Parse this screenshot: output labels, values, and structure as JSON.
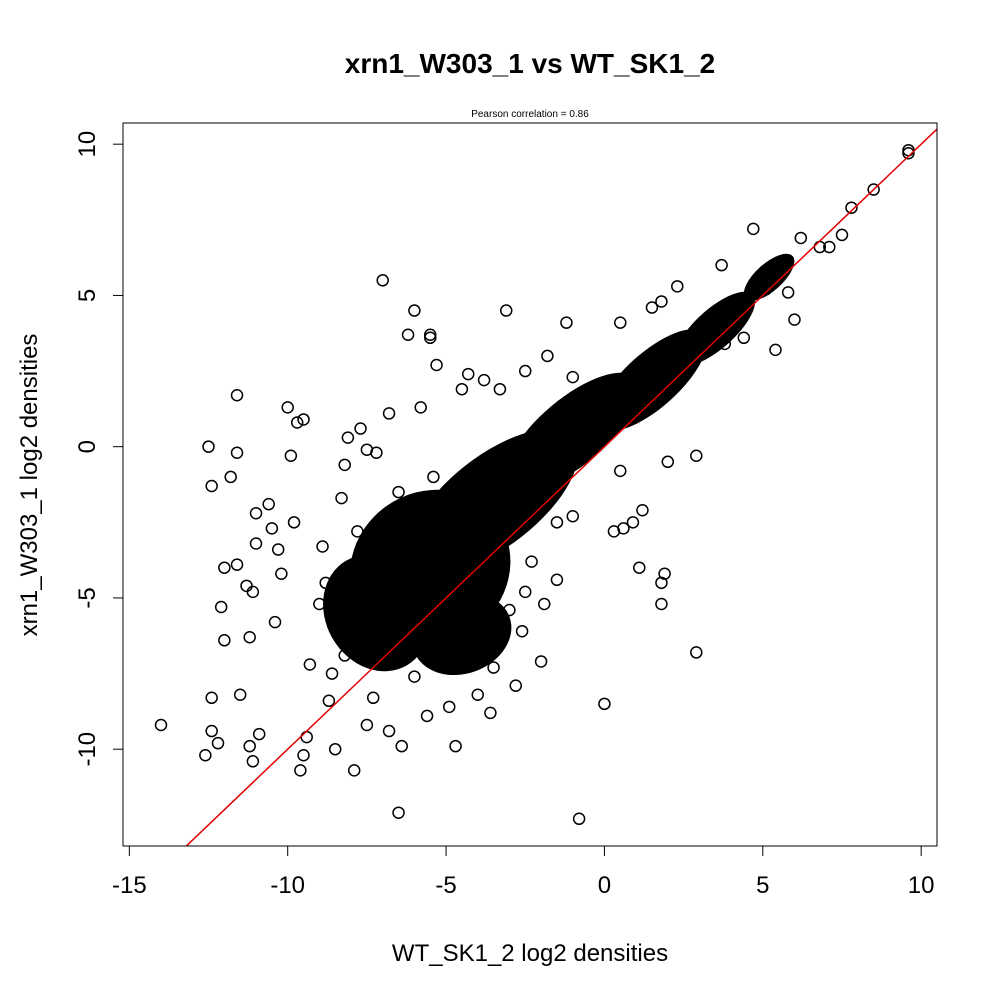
{
  "chart_data": {
    "type": "scatter",
    "title": "xrn1_W303_1 vs WT_SK1_2",
    "subtitle": "Pearson correlation =  0.86",
    "xlabel": "WT_SK1_2 log2 densities",
    "ylabel": "xrn1_W303_1 log2 densities",
    "xlim": [
      -15.2,
      10.5
    ],
    "ylim": [
      -13.2,
      10.7
    ],
    "x_ticks": [
      -15,
      -10,
      -5,
      0,
      5,
      10
    ],
    "x_tick_labels": [
      "-15",
      "-10",
      "-5",
      "0",
      "5",
      "10"
    ],
    "y_ticks": [
      -10,
      -5,
      0,
      5,
      10
    ],
    "y_tick_labels": [
      "-10",
      "-5",
      "0",
      "5",
      "10"
    ],
    "grid": false,
    "legend": "none",
    "reference_line": {
      "intercept": 0,
      "slope": 1,
      "color": "#e00000"
    },
    "point_color": "#000000",
    "points": [
      [
        -14.0,
        -9.2
      ],
      [
        -12.6,
        -10.2
      ],
      [
        -12.4,
        -8.3
      ],
      [
        -12.4,
        -9.4
      ],
      [
        -12.5,
        0.0
      ],
      [
        -12.4,
        -1.3
      ],
      [
        -12.2,
        -9.8
      ],
      [
        -12.1,
        -5.3
      ],
      [
        -12.0,
        -4.0
      ],
      [
        -12.0,
        -6.4
      ],
      [
        -11.8,
        -1.0
      ],
      [
        -11.6,
        1.7
      ],
      [
        -11.6,
        -0.2
      ],
      [
        -11.6,
        -3.9
      ],
      [
        -11.5,
        -8.2
      ],
      [
        -11.3,
        -4.6
      ],
      [
        -11.2,
        -6.3
      ],
      [
        -11.2,
        -9.9
      ],
      [
        -11.1,
        -10.4
      ],
      [
        -11.1,
        -4.8
      ],
      [
        -11.0,
        -2.2
      ],
      [
        -11.0,
        -3.2
      ],
      [
        -10.9,
        -9.5
      ],
      [
        -10.6,
        -1.9
      ],
      [
        -10.5,
        -2.7
      ],
      [
        -10.4,
        -5.8
      ],
      [
        -10.2,
        -4.2
      ],
      [
        -10.0,
        1.3
      ],
      [
        -9.8,
        -2.5
      ],
      [
        -9.7,
        0.8
      ],
      [
        -9.5,
        0.9
      ],
      [
        -9.6,
        -10.7
      ],
      [
        -9.5,
        -10.2
      ],
      [
        -9.4,
        -9.6
      ],
      [
        -8.9,
        -3.3
      ],
      [
        -8.7,
        -8.4
      ],
      [
        -8.6,
        -7.5
      ],
      [
        -8.5,
        -10.0
      ],
      [
        -8.3,
        -1.7
      ],
      [
        -8.2,
        -0.6
      ],
      [
        -8.1,
        0.3
      ],
      [
        -7.9,
        -10.7
      ],
      [
        -7.7,
        0.6
      ],
      [
        -7.5,
        -9.2
      ],
      [
        -7.2,
        -0.2
      ],
      [
        -7.0,
        5.5
      ],
      [
        -6.8,
        -9.4
      ],
      [
        -6.5,
        -12.1
      ],
      [
        -6.4,
        -9.9
      ],
      [
        -6.2,
        3.7
      ],
      [
        -6.0,
        4.5
      ],
      [
        -5.8,
        -6.2
      ],
      [
        -5.5,
        3.7
      ],
      [
        -5.5,
        3.6
      ],
      [
        -5.3,
        2.7
      ],
      [
        -5.4,
        -1.0
      ],
      [
        -5.8,
        1.3
      ],
      [
        -4.9,
        -8.6
      ],
      [
        -4.8,
        -7.0
      ],
      [
        -4.7,
        -9.9
      ],
      [
        -4.3,
        2.4
      ],
      [
        -4.0,
        -8.2
      ],
      [
        -3.8,
        2.2
      ],
      [
        -3.6,
        -8.8
      ],
      [
        -3.1,
        4.5
      ],
      [
        -2.8,
        -7.9
      ],
      [
        -2.5,
        -4.8
      ],
      [
        -2.6,
        -6.1
      ],
      [
        -2.0,
        -7.1
      ],
      [
        -1.9,
        -5.2
      ],
      [
        -1.8,
        -1.3
      ],
      [
        -1.5,
        -2.5
      ],
      [
        -1.2,
        4.1
      ],
      [
        -1.0,
        2.3
      ],
      [
        -0.8,
        -12.3
      ],
      [
        0.0,
        -8.5
      ],
      [
        0.3,
        -2.8
      ],
      [
        0.6,
        -2.7
      ],
      [
        0.9,
        -2.5
      ],
      [
        1.2,
        -2.1
      ],
      [
        1.1,
        -4.0
      ],
      [
        1.8,
        -4.5
      ],
      [
        1.8,
        -5.2
      ],
      [
        1.9,
        -4.2
      ],
      [
        2.9,
        -6.8
      ],
      [
        2.9,
        -0.3
      ],
      [
        5.4,
        3.2
      ],
      [
        5.8,
        5.1
      ],
      [
        6.0,
        4.2
      ],
      [
        6.8,
        6.6
      ],
      [
        7.1,
        6.6
      ],
      [
        7.5,
        7.0
      ],
      [
        7.8,
        7.9
      ],
      [
        8.5,
        8.5
      ],
      [
        9.6,
        9.8
      ],
      [
        9.6,
        9.7
      ],
      [
        4.7,
        7.2
      ],
      [
        3.7,
        6.0
      ],
      [
        2.3,
        5.3
      ],
      [
        1.8,
        4.8
      ],
      [
        1.5,
        4.6
      ],
      [
        0.5,
        4.1
      ],
      [
        -1.8,
        3.0
      ],
      [
        -2.5,
        2.5
      ],
      [
        -3.3,
        1.9
      ],
      [
        -6.8,
        1.1
      ],
      [
        -7.5,
        -0.1
      ],
      [
        -9.9,
        -0.3
      ],
      [
        -10.3,
        -3.4
      ],
      [
        -9.0,
        -5.2
      ],
      [
        -8.2,
        -6.9
      ],
      [
        -7.3,
        -8.3
      ],
      [
        -5.6,
        -8.9
      ],
      [
        -3.5,
        -7.3
      ],
      [
        -3.0,
        -5.4
      ],
      [
        -2.3,
        -3.8
      ],
      [
        -1.0,
        -2.3
      ],
      [
        0.5,
        -0.8
      ],
      [
        2.0,
        -0.5
      ],
      [
        3.8,
        3.4
      ],
      [
        4.4,
        3.6
      ],
      [
        5.1,
        5.2
      ],
      [
        6.2,
        6.9
      ],
      [
        -4.5,
        1.9
      ],
      [
        -6.5,
        -1.5
      ],
      [
        -7.8,
        -2.8
      ],
      [
        -8.8,
        -4.5
      ],
      [
        -9.3,
        -7.2
      ],
      [
        -6.0,
        -7.6
      ],
      [
        -1.5,
        -4.4
      ]
    ],
    "dense_cloud": [
      {
        "cx": -5.5,
        "cy": -4.0,
        "rx": 2.6,
        "ry": 2.5,
        "rot": 35
      },
      {
        "cx": -3.5,
        "cy": -1.8,
        "rx": 3.2,
        "ry": 1.5,
        "rot": 38
      },
      {
        "cx": -1.0,
        "cy": 0.5,
        "rx": 2.6,
        "ry": 1.1,
        "rot": 40
      },
      {
        "cx": 1.5,
        "cy": 2.2,
        "rx": 2.2,
        "ry": 0.9,
        "rot": 42
      },
      {
        "cx": 3.5,
        "cy": 3.9,
        "rx": 1.6,
        "ry": 0.65,
        "rot": 42
      },
      {
        "cx": 5.2,
        "cy": 5.6,
        "rx": 1.0,
        "ry": 0.45,
        "rot": 42
      },
      {
        "cx": -7.2,
        "cy": -5.5,
        "rx": 1.6,
        "ry": 2.0,
        "rot": 30
      },
      {
        "cx": -4.5,
        "cy": -6.2,
        "rx": 1.6,
        "ry": 1.3,
        "rot": 20
      }
    ]
  }
}
